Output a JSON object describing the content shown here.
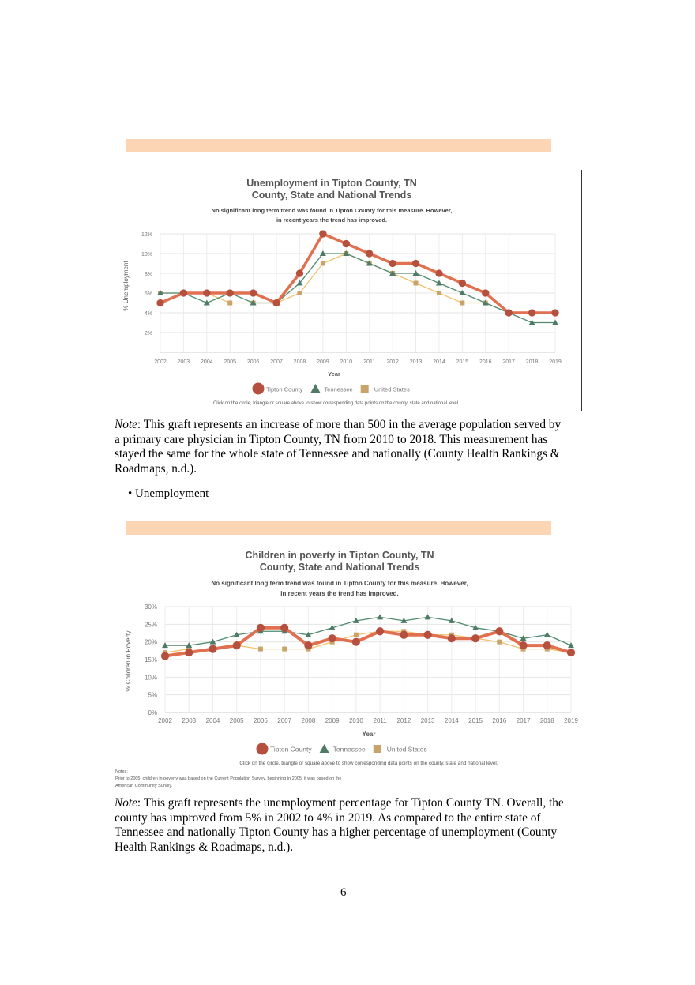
{
  "chart_data": [
    {
      "type": "line",
      "title": "Unemployment in Tipton County, TN",
      "title2": "County, State and National Trends",
      "subtitle": "No significant long term trend was found in Tipton County for this measure. However,",
      "subtitle2": "in recent years the trend has improved.",
      "xlabel": "Year",
      "ylabel": "% Unemployment",
      "ylim": [
        0,
        12
      ],
      "yticks": [
        "2%",
        "4%",
        "6%",
        "8%",
        "10%",
        "12%"
      ],
      "ytick_values": [
        2,
        4,
        6,
        8,
        10,
        12
      ],
      "grid": true,
      "legend_position": "bottom",
      "categories": [
        "2002",
        "2003",
        "2004",
        "2005",
        "2006",
        "2007",
        "2008",
        "2009",
        "2010",
        "2011",
        "2012",
        "2013",
        "2014",
        "2015",
        "2016",
        "2017",
        "2018",
        "2019"
      ],
      "series": [
        {
          "name": "United States",
          "marker": "square",
          "color": "#f0c36d",
          "marker_color": "#c9a46a",
          "values": [
            6,
            6,
            6,
            5,
            5,
            5,
            6,
            9,
            10,
            9,
            8,
            7,
            6,
            5,
            5,
            4,
            4,
            4
          ]
        },
        {
          "name": "Tennessee",
          "marker": "triangle",
          "color": "#4f8a6f",
          "marker_color": "#4f7a66",
          "values": [
            6,
            6,
            5,
            6,
            5,
            5,
            7,
            10,
            10,
            9,
            8,
            8,
            7,
            6,
            5,
            4,
            3,
            3
          ]
        },
        {
          "name": "Tipton County",
          "marker": "circle",
          "color": "#e07050",
          "marker_color": "#b5503f",
          "values": [
            5,
            6,
            6,
            6,
            6,
            5,
            8,
            12,
            11,
            10,
            9,
            9,
            8,
            7,
            6,
            4,
            4,
            4
          ]
        }
      ],
      "caption": "Click on the circle, triangle or square above to show corresponding data points on the county, state and national level"
    },
    {
      "type": "line",
      "title": "Children in poverty in Tipton County, TN",
      "title2": "County, State and National Trends",
      "subtitle": "No significant long term trend was found in Tipton County for this measure. However,",
      "subtitle2": "in recent years the trend has improved.",
      "xlabel": "Year",
      "ylabel": "% Children in Poverty",
      "ylim": [
        0,
        30
      ],
      "yticks": [
        "0%",
        "5%",
        "10%",
        "15%",
        "20%",
        "25%",
        "30%"
      ],
      "ytick_values": [
        0,
        5,
        10,
        15,
        20,
        25,
        30
      ],
      "grid": true,
      "legend_position": "bottom",
      "categories": [
        "2002",
        "2003",
        "2004",
        "2005",
        "2006",
        "2007",
        "2008",
        "2009",
        "2010",
        "2011",
        "2012",
        "2013",
        "2014",
        "2015",
        "2016",
        "2017",
        "2018",
        "2019"
      ],
      "series": [
        {
          "name": "United States",
          "marker": "square",
          "color": "#f0c36d",
          "marker_color": "#c9a46a",
          "values": [
            17,
            18,
            18,
            19,
            18,
            18,
            18,
            20,
            22,
            23,
            23,
            22,
            22,
            21,
            20,
            18,
            18,
            17
          ]
        },
        {
          "name": "Tennessee",
          "marker": "triangle",
          "color": "#4f8a6f",
          "marker_color": "#4f7a66",
          "values": [
            19,
            19,
            20,
            22,
            23,
            23,
            22,
            24,
            26,
            27,
            26,
            27,
            26,
            24,
            23,
            21,
            22,
            19
          ]
        },
        {
          "name": "Tipton County",
          "marker": "circle",
          "color": "#e07050",
          "marker_color": "#b5503f",
          "values": [
            16,
            17,
            18,
            19,
            24,
            24,
            19,
            21,
            20,
            23,
            22,
            22,
            21,
            21,
            23,
            19,
            19,
            17
          ]
        }
      ],
      "caption": "Click on the circle, triangle or square above to show corresponding data points on the county, state and national level.",
      "notes": [
        "Notes:",
        "Prior to 2005, children in poverty was based on the Current Population Survey, beginning in 2005, it was based on the",
        "American Community Survey."
      ]
    }
  ],
  "note1": {
    "label": "Note",
    "text": ": This graft represents an increase of more than 500 in the average population served by a primary care physician in Tipton County, TN from 2010 to 2018. This measurement has stayed the same for the whole state of Tennessee and nationally (County Health Rankings & Roadmaps, n.d.)."
  },
  "bullet": "• Unemployment",
  "note2": {
    "label": "Note",
    "text": ": This graft represents the unemployment percentage for Tipton County TN. Overall, the county has improved from 5% in 2002 to 4% in 2019. As compared to the entire state of Tennessee and nationally Tipton County has a higher percentage of unemployment (County Health Rankings & Roadmaps, n.d.)."
  },
  "page_number": "6"
}
